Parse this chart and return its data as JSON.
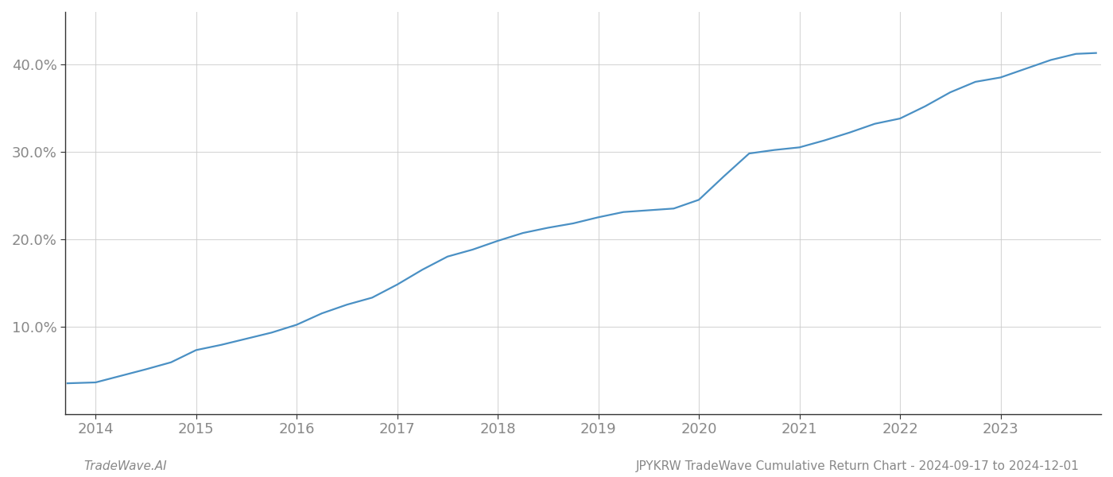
{
  "title": "",
  "xlabel": "",
  "ylabel": "",
  "footer_left": "TradeWave.AI",
  "footer_right": "JPYKRW TradeWave Cumulative Return Chart - 2024-09-17 to 2024-12-01",
  "line_color": "#4a90c4",
  "background_color": "#ffffff",
  "grid_color": "#cccccc",
  "x_years": [
    2014,
    2015,
    2016,
    2017,
    2018,
    2019,
    2020,
    2021,
    2022,
    2023
  ],
  "data_points": {
    "2013.72": 3.5,
    "2014.0": 3.6,
    "2014.2": 4.2,
    "2014.5": 5.1,
    "2014.75": 5.9,
    "2015.0": 7.3,
    "2015.25": 7.9,
    "2015.5": 8.6,
    "2015.75": 9.3,
    "2016.0": 10.2,
    "2016.25": 11.5,
    "2016.5": 12.5,
    "2016.75": 13.3,
    "2017.0": 14.8,
    "2017.25": 16.5,
    "2017.5": 18.0,
    "2017.75": 18.8,
    "2018.0": 19.8,
    "2018.25": 20.7,
    "2018.5": 21.3,
    "2018.75": 21.8,
    "2019.0": 22.5,
    "2019.25": 23.1,
    "2019.5": 23.3,
    "2019.75": 23.5,
    "2020.0": 24.5,
    "2020.25": 27.2,
    "2020.5": 29.8,
    "2020.75": 30.2,
    "2021.0": 30.5,
    "2021.25": 31.3,
    "2021.5": 32.2,
    "2021.75": 33.2,
    "2022.0": 33.8,
    "2022.25": 35.2,
    "2022.5": 36.8,
    "2022.75": 38.0,
    "2023.0": 38.5,
    "2023.25": 39.5,
    "2023.5": 40.5,
    "2023.75": 41.2,
    "2023.95": 41.3
  },
  "ylim": [
    0,
    46
  ],
  "yticks": [
    10.0,
    20.0,
    30.0,
    40.0
  ],
  "xlim": [
    2013.7,
    2024.0
  ],
  "line_width": 1.6,
  "footer_fontsize": 11,
  "tick_fontsize": 13,
  "grid_alpha": 0.8
}
